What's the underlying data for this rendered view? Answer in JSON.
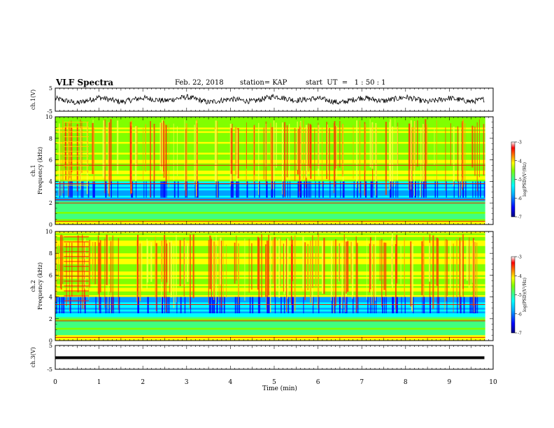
{
  "header": {
    "title": "VLF Spectra",
    "date": "Feb. 22, 2018",
    "station": "station= KAP",
    "start": "start  UT  =   1 : 50 : 1"
  },
  "colors": {
    "axis": "#000000",
    "trace": "#000000",
    "colormap": [
      "#000080",
      "#0000ff",
      "#00a0ff",
      "#00ffff",
      "#40ff80",
      "#80ff00",
      "#ffff00",
      "#ff8000",
      "#ff0000",
      "#ffffff"
    ]
  },
  "chart_data": [
    {
      "type": "line",
      "ylabel": "ch.1(V)",
      "ylim": [
        -5,
        5
      ],
      "yticks": [
        "5",
        "-5"
      ],
      "xlim": [
        0,
        10
      ],
      "note_values": "noisy voltage waveform, roughly -2 to +2 V",
      "x": [
        0,
        0.5,
        1,
        1.5,
        2,
        2.5,
        3,
        3.5,
        4,
        4.5,
        5,
        5.5,
        6,
        6.5,
        7,
        7.5,
        8,
        8.5,
        9,
        9.5,
        9.8
      ],
      "values": [
        0.5,
        -1.5,
        1.0,
        -1.0,
        0.8,
        -0.5,
        1.2,
        -1.2,
        0.3,
        -0.8,
        1.5,
        -0.3,
        0.6,
        -1.4,
        0.9,
        -0.6,
        1.1,
        -1.0,
        0.7,
        -0.9,
        0.2
      ]
    },
    {
      "type": "heatmap",
      "ylabel": "ch.1\nFrequency (kHz)",
      "ylim": [
        0,
        10
      ],
      "yticks": [
        "0",
        "2",
        "4",
        "6",
        "8",
        "10"
      ],
      "xlim": [
        0,
        9.8
      ],
      "colorbar": {
        "label": "log(PSD)(V²/Hz)",
        "range": [
          -7,
          -3
        ],
        "ticks": [
          "-3",
          "-4",
          "-5",
          "-6",
          "-7"
        ]
      }
    },
    {
      "type": "heatmap",
      "ylabel": "ch.2\nFrequency (kHz)",
      "ylim": [
        0,
        10
      ],
      "yticks": [
        "0",
        "2",
        "4",
        "6",
        "8",
        "10"
      ],
      "xlim": [
        0,
        9.8
      ],
      "colorbar": {
        "label": "log(PSD)(V²/Hz)",
        "range": [
          -7,
          -3
        ],
        "ticks": [
          "-3",
          "-4",
          "-5",
          "-6",
          "-7"
        ]
      }
    },
    {
      "type": "line",
      "ylabel": "ch.3(V)",
      "ylim": [
        -5,
        5
      ],
      "yticks": [
        "5",
        "-5"
      ],
      "xlim": [
        0,
        10
      ],
      "x": [
        0,
        9.8
      ],
      "values": [
        0,
        0
      ]
    }
  ],
  "xaxis": {
    "label": "Time (min)",
    "ticks": [
      "0",
      "1",
      "2",
      "3",
      "4",
      "5",
      "6",
      "7",
      "8",
      "9",
      "10"
    ]
  }
}
